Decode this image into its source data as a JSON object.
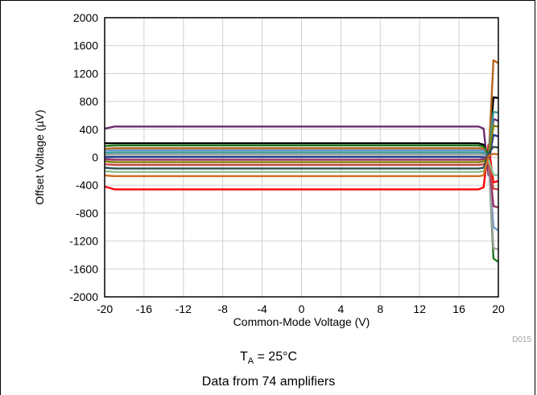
{
  "chart_data": {
    "type": "line",
    "xlabel": "Common-Mode Voltage (V)",
    "ylabel": "Offset Voltage (µV)",
    "xlim": [
      -20,
      20
    ],
    "ylim": [
      -2000,
      2000
    ],
    "xticks": [
      "-20",
      "-16",
      "-12",
      "-8",
      "-4",
      "0",
      "4",
      "8",
      "12",
      "16",
      "20"
    ],
    "yticks": [
      "2000",
      "1600",
      "1200",
      "800",
      "400",
      "0",
      "-400",
      "-800",
      "-1200",
      "-1600",
      "-2000"
    ],
    "grid": true,
    "legend": "none",
    "series_colors": [
      "#6a2b6e",
      "#ff0000",
      "#000000",
      "#1f7a1f",
      "#b5651d",
      "#6699cc",
      "#3a9a9a",
      "#a0a0a0",
      "#1a3a8a",
      "#993366",
      "#808000",
      "#cc4444",
      "#2f4f4f",
      "#8fbc8f",
      "#d2691e"
    ],
    "series": [
      {
        "x": [
          -20,
          -19,
          18,
          18.5,
          19,
          19.5,
          20
        ],
        "y": [
          410,
          440,
          440,
          410,
          -260,
          550,
          520
        ]
      },
      {
        "x": [
          -20,
          -19,
          18,
          18.5,
          19,
          19.5,
          20
        ],
        "y": [
          -420,
          -460,
          -460,
          -430,
          180,
          -360,
          -340
        ]
      },
      {
        "x": [
          -20,
          -19,
          18,
          18.5,
          19,
          19.5,
          20
        ],
        "y": [
          200,
          200,
          200,
          180,
          0,
          860,
          850
        ]
      },
      {
        "x": [
          -20,
          -19,
          18,
          18.5,
          19,
          19.5,
          20
        ],
        "y": [
          160,
          170,
          170,
          150,
          50,
          -1450,
          -1500
        ]
      },
      {
        "x": [
          -20,
          -19,
          18,
          18.5,
          19,
          19.5,
          20
        ],
        "y": [
          120,
          130,
          130,
          120,
          -40,
          1390,
          1350
        ]
      },
      {
        "x": [
          -20,
          -19,
          18,
          18.5,
          19,
          19.5,
          20
        ],
        "y": [
          90,
          100,
          100,
          95,
          -20,
          -1000,
          -1050
        ]
      },
      {
        "x": [
          -20,
          -19,
          18,
          18.5,
          19,
          19.5,
          20
        ],
        "y": [
          60,
          70,
          70,
          65,
          30,
          650,
          640
        ]
      },
      {
        "x": [
          -20,
          -19,
          18,
          18.5,
          19,
          19.5,
          20
        ],
        "y": [
          30,
          40,
          40,
          35,
          -10,
          -1300,
          -1320
        ]
      },
      {
        "x": [
          -20,
          -19,
          18,
          18.5,
          19,
          19.5,
          20
        ],
        "y": [
          0,
          5,
          5,
          0,
          -60,
          320,
          300
        ]
      },
      {
        "x": [
          -20,
          -19,
          18,
          18.5,
          19,
          19.5,
          20
        ],
        "y": [
          -30,
          -35,
          -35,
          -30,
          40,
          -700,
          -720
        ]
      },
      {
        "x": [
          -20,
          -19,
          18,
          18.5,
          19,
          19.5,
          20
        ],
        "y": [
          -60,
          -70,
          -70,
          -60,
          10,
          450,
          440
        ]
      },
      {
        "x": [
          -20,
          -19,
          18,
          18.5,
          19,
          19.5,
          20
        ],
        "y": [
          -100,
          -110,
          -110,
          -100,
          -80,
          -450,
          -460
        ]
      },
      {
        "x": [
          -20,
          -19,
          18,
          18.5,
          19,
          19.5,
          20
        ],
        "y": [
          -150,
          -160,
          -160,
          -150,
          60,
          150,
          140
        ]
      },
      {
        "x": [
          -20,
          -19,
          18,
          18.5,
          19,
          19.5,
          20
        ],
        "y": [
          -200,
          -210,
          -210,
          -200,
          -30,
          -250,
          -260
        ]
      },
      {
        "x": [
          -20,
          -19,
          18,
          18.5,
          19,
          19.5,
          20
        ],
        "y": [
          -260,
          -270,
          -270,
          -260,
          20,
          50,
          40
        ]
      }
    ]
  },
  "figure_code": "D015",
  "caption": {
    "temp_prefix": "T",
    "temp_sub": "A",
    "temp_suffix": " = 25°C",
    "note": "Data from 74 amplifiers"
  }
}
